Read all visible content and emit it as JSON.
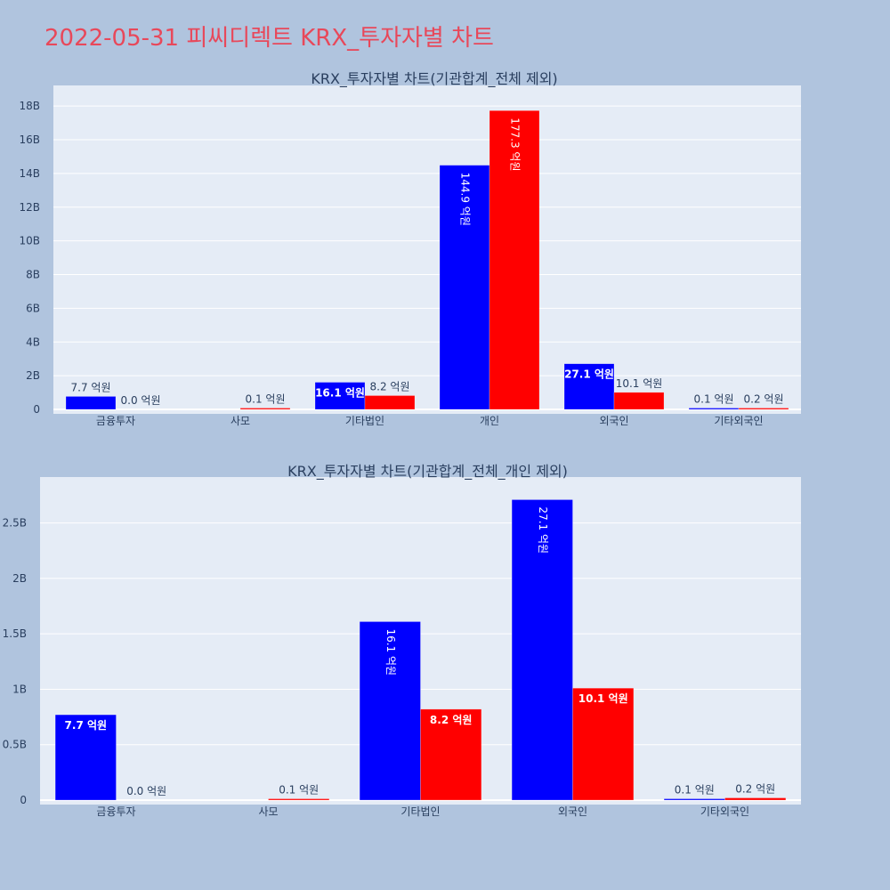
{
  "page": {
    "title": "2022-05-31 피씨디렉트 KRX_투자자별 차트"
  },
  "colors": {
    "buy": "#0000ff",
    "sell": "#ff0000",
    "plot_bg": "#e5ecf6",
    "background": "#b0c4de"
  },
  "chart_data": [
    {
      "type": "bar",
      "title": "KRX_투자자별 차트(기관합계_전체 제외)",
      "categories": [
        "금융투자",
        "사모",
        "기타법인",
        "개인",
        "외국인",
        "기타외국인"
      ],
      "ylim": [
        0,
        18800000000
      ],
      "yticks": [
        0,
        2000000000,
        4000000000,
        6000000000,
        8000000000,
        10000000000,
        12000000000,
        14000000000,
        16000000000,
        18000000000
      ],
      "ytick_labels": [
        "0",
        "2B",
        "4B",
        "6B",
        "8B",
        "10B",
        "12B",
        "14B",
        "16B",
        "18B"
      ],
      "series": [
        {
          "color": "#0000ff",
          "values": [
            770000000,
            0,
            1610000000,
            14490000000,
            2710000000,
            10000000
          ],
          "labels": [
            "7.7 억원",
            "",
            "16.1 억원",
            "144.9 억원",
            "27.1 억원",
            "0.1 억원"
          ]
        },
        {
          "color": "#ff0000",
          "values": [
            0,
            10000000,
            820000000,
            17730000000,
            1010000000,
            20000000
          ],
          "labels": [
            "0.0 억원",
            "0.1 억원",
            "8.2 억원",
            "177.3 억원",
            "10.1 억원",
            "0.2 억원"
          ]
        }
      ],
      "grid": true,
      "legend": "none"
    },
    {
      "type": "bar",
      "title": "KRX_투자자별 차트(기관합계_전체_개인 제외)",
      "categories": [
        "금융투자",
        "사모",
        "기타법인",
        "외국인",
        "기타외국인"
      ],
      "ylim": [
        0,
        2850000000
      ],
      "yticks": [
        0,
        500000000,
        1000000000,
        1500000000,
        2000000000,
        2500000000
      ],
      "ytick_labels": [
        "0",
        "0.5B",
        "1B",
        "1.5B",
        "2B",
        "2.5B"
      ],
      "series": [
        {
          "color": "#0000ff",
          "values": [
            770000000,
            0,
            1610000000,
            2710000000,
            10000000
          ],
          "labels": [
            "7.7 억원",
            "",
            "16.1 억원",
            "27.1 억원",
            "0.1 억원"
          ]
        },
        {
          "color": "#ff0000",
          "values": [
            0,
            10000000,
            820000000,
            1010000000,
            20000000
          ],
          "labels": [
            "0.0 억원",
            "0.1 억원",
            "8.2 억원",
            "10.1 억원",
            "0.2 억원"
          ]
        }
      ],
      "grid": true,
      "legend": "none"
    }
  ]
}
